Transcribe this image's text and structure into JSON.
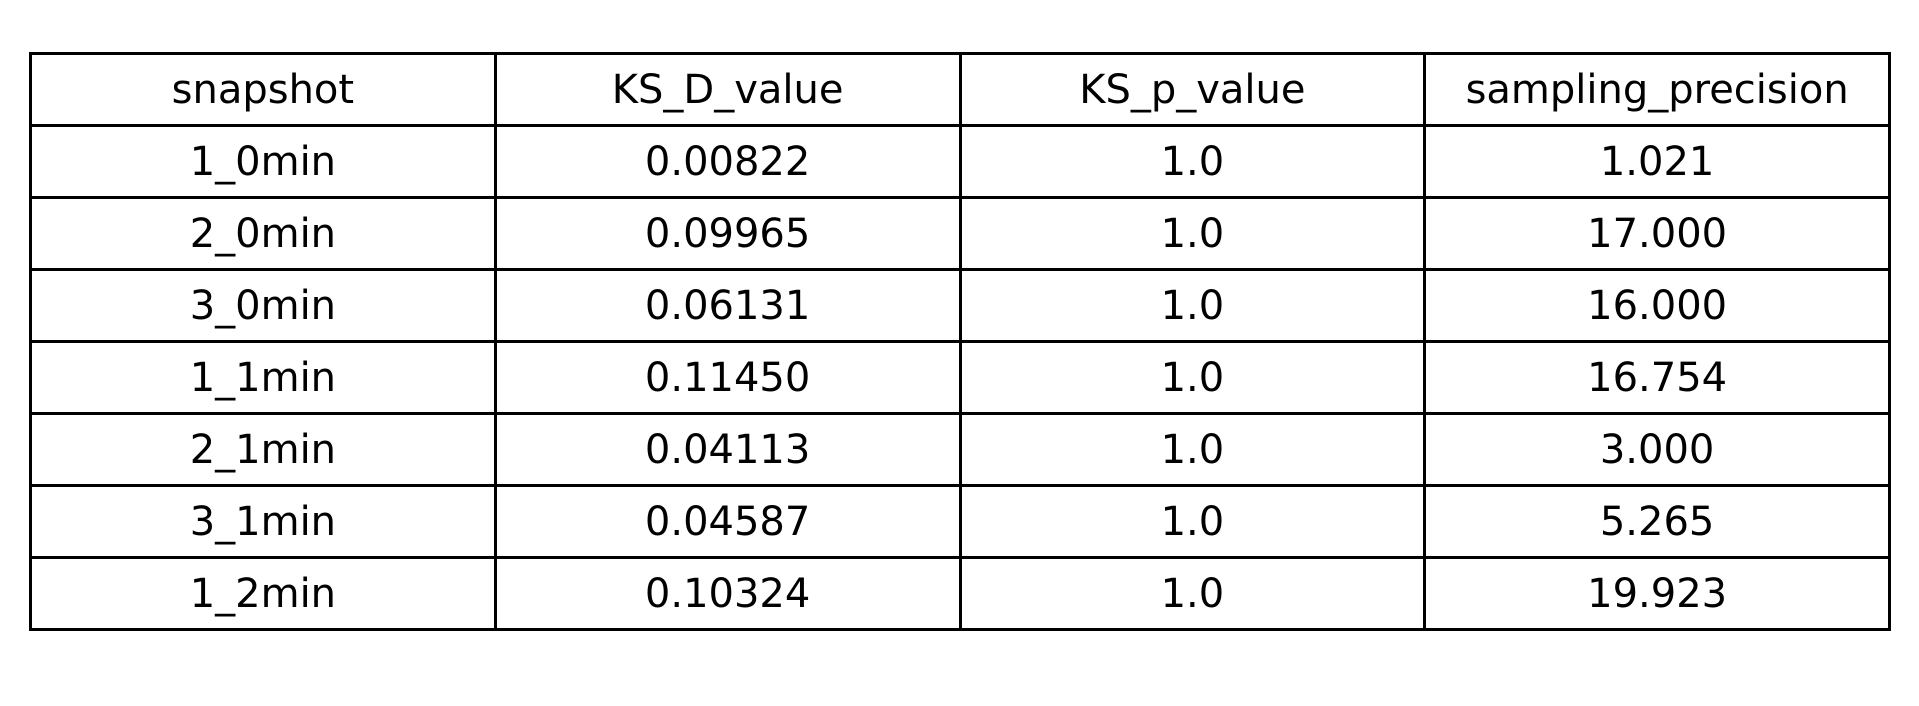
{
  "chart_data": {
    "type": "table",
    "columns": [
      "snapshot",
      "KS_D_value",
      "KS_p_value",
      "sampling_precision"
    ],
    "rows": [
      [
        "1_0min",
        "0.00822",
        "1.0",
        "1.021"
      ],
      [
        "2_0min",
        "0.09965",
        "1.0",
        "17.000"
      ],
      [
        "3_0min",
        "0.06131",
        "1.0",
        "16.000"
      ],
      [
        "1_1min",
        "0.11450",
        "1.0",
        "16.754"
      ],
      [
        "2_1min",
        "0.04113",
        "1.0",
        "3.000"
      ],
      [
        "3_1min",
        "0.04587",
        "1.0",
        "5.265"
      ],
      [
        "1_2min",
        "0.10324",
        "1.0",
        "19.923"
      ]
    ]
  }
}
